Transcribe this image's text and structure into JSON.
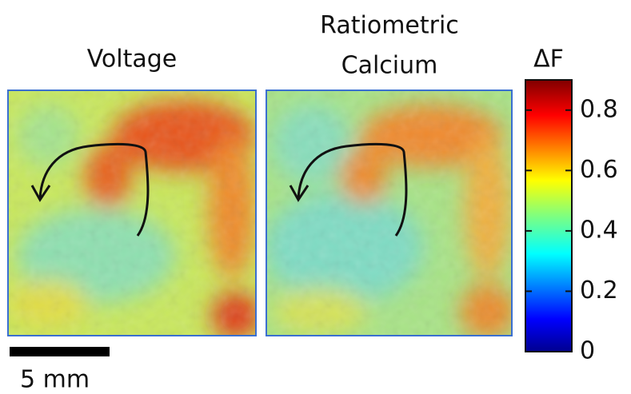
{
  "panels": [
    {
      "title_lines": [
        "Voltage"
      ]
    },
    {
      "title_lines": [
        "Ratiometric",
        "Calcium"
      ]
    }
  ],
  "colorbar": {
    "label": "ΔF",
    "lim": [
      0,
      0.9
    ],
    "ticks": [
      0,
      0.2,
      0.4,
      0.6,
      0.8
    ]
  },
  "scale_bar": {
    "label": "5 mm"
  }
}
